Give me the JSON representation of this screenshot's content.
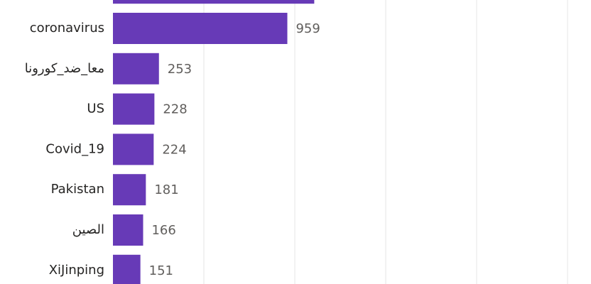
{
  "chart_data": {
    "type": "hbar",
    "categories": [
      null,
      "coronavirus",
      "معا_ضد_كورونا",
      "US",
      "Covid_19",
      "Pakistan",
      "الصين",
      "XiJinping"
    ],
    "values": [
      1107,
      959,
      253,
      228,
      224,
      181,
      166,
      151
    ],
    "color": "#673ab7",
    "xlim": [
      0,
      2629
    ],
    "xticks": [
      500,
      1000,
      1500,
      2000,
      2500
    ],
    "grid": true
  }
}
